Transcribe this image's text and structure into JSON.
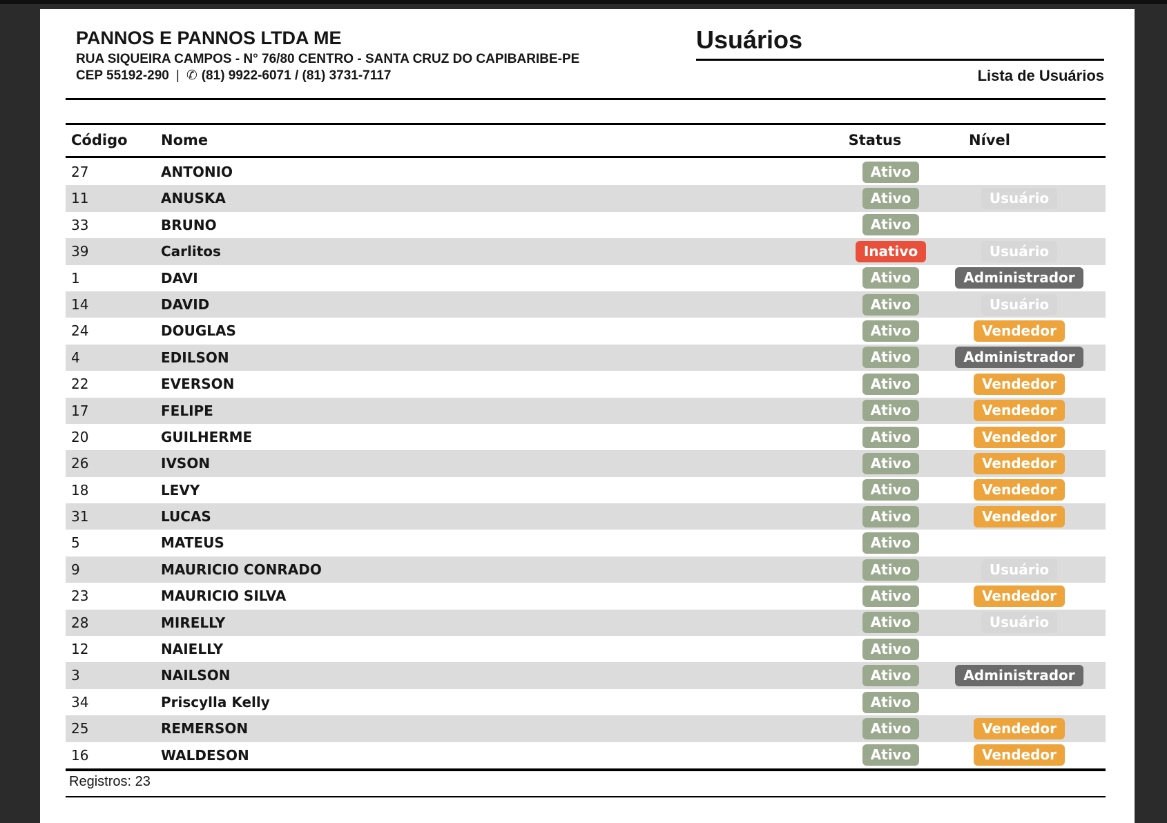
{
  "company": {
    "name": "PANNOS E PANNOS LTDA ME",
    "address": "RUA SIQUEIRA CAMPOS - N° 76/80 CENTRO - SANTA CRUZ DO CAPIBARIBE-PE",
    "cep": "CEP 55192-290",
    "separator": "|",
    "phone_icon": "✆",
    "phones": "(81) 9922-6071 / (81) 3731-7117"
  },
  "report": {
    "title": "Usuários",
    "subtitle": "Lista de Usuários"
  },
  "table": {
    "headers": {
      "codigo": "Código",
      "nome": "Nome",
      "status": "Status",
      "nivel": "Nível"
    },
    "rows": [
      {
        "codigo": "27",
        "nome": "ANTONIO",
        "status": "Ativo",
        "status_type": "ativo",
        "nivel": "",
        "nivel_type": ""
      },
      {
        "codigo": "11",
        "nome": "ANUSKA",
        "status": "Ativo",
        "status_type": "ativo",
        "nivel": "Usuário",
        "nivel_type": "usuario"
      },
      {
        "codigo": "33",
        "nome": "BRUNO",
        "status": "Ativo",
        "status_type": "ativo",
        "nivel": "",
        "nivel_type": ""
      },
      {
        "codigo": "39",
        "nome": "Carlitos",
        "status": "Inativo",
        "status_type": "inativo",
        "nivel": "Usuário",
        "nivel_type": "usuario"
      },
      {
        "codigo": "1",
        "nome": "DAVI",
        "status": "Ativo",
        "status_type": "ativo",
        "nivel": "Administrador",
        "nivel_type": "administrador"
      },
      {
        "codigo": "14",
        "nome": "DAVID",
        "status": "Ativo",
        "status_type": "ativo",
        "nivel": "Usuário",
        "nivel_type": "usuario"
      },
      {
        "codigo": "24",
        "nome": "DOUGLAS",
        "status": "Ativo",
        "status_type": "ativo",
        "nivel": "Vendedor",
        "nivel_type": "vendedor"
      },
      {
        "codigo": "4",
        "nome": "EDILSON",
        "status": "Ativo",
        "status_type": "ativo",
        "nivel": "Administrador",
        "nivel_type": "administrador"
      },
      {
        "codigo": "22",
        "nome": "EVERSON",
        "status": "Ativo",
        "status_type": "ativo",
        "nivel": "Vendedor",
        "nivel_type": "vendedor"
      },
      {
        "codigo": "17",
        "nome": "FELIPE",
        "status": "Ativo",
        "status_type": "ativo",
        "nivel": "Vendedor",
        "nivel_type": "vendedor"
      },
      {
        "codigo": "20",
        "nome": "GUILHERME",
        "status": "Ativo",
        "status_type": "ativo",
        "nivel": "Vendedor",
        "nivel_type": "vendedor"
      },
      {
        "codigo": "26",
        "nome": "IVSON",
        "status": "Ativo",
        "status_type": "ativo",
        "nivel": "Vendedor",
        "nivel_type": "vendedor"
      },
      {
        "codigo": "18",
        "nome": "LEVY",
        "status": "Ativo",
        "status_type": "ativo",
        "nivel": "Vendedor",
        "nivel_type": "vendedor"
      },
      {
        "codigo": "31",
        "nome": "LUCAS",
        "status": "Ativo",
        "status_type": "ativo",
        "nivel": "Vendedor",
        "nivel_type": "vendedor"
      },
      {
        "codigo": "5",
        "nome": "MATEUS",
        "status": "Ativo",
        "status_type": "ativo",
        "nivel": "",
        "nivel_type": ""
      },
      {
        "codigo": "9",
        "nome": "MAURICIO CONRADO",
        "status": "Ativo",
        "status_type": "ativo",
        "nivel": "Usuário",
        "nivel_type": "usuario"
      },
      {
        "codigo": "23",
        "nome": "MAURICIO SILVA",
        "status": "Ativo",
        "status_type": "ativo",
        "nivel": "Vendedor",
        "nivel_type": "vendedor"
      },
      {
        "codigo": "28",
        "nome": "MIRELLY",
        "status": "Ativo",
        "status_type": "ativo",
        "nivel": "Usuário",
        "nivel_type": "usuario"
      },
      {
        "codigo": "12",
        "nome": "NAIELLY",
        "status": "Ativo",
        "status_type": "ativo",
        "nivel": "",
        "nivel_type": ""
      },
      {
        "codigo": "3",
        "nome": "NAILSON",
        "status": "Ativo",
        "status_type": "ativo",
        "nivel": "Administrador",
        "nivel_type": "administrador"
      },
      {
        "codigo": "34",
        "nome": "Priscylla Kelly",
        "status": "Ativo",
        "status_type": "ativo",
        "nivel": "",
        "nivel_type": ""
      },
      {
        "codigo": "25",
        "nome": "REMERSON",
        "status": "Ativo",
        "status_type": "ativo",
        "nivel": "Vendedor",
        "nivel_type": "vendedor"
      },
      {
        "codigo": "16",
        "nome": "WALDESON",
        "status": "Ativo",
        "status_type": "ativo",
        "nivel": "Vendedor",
        "nivel_type": "vendedor"
      }
    ]
  },
  "footer": {
    "registros": "Registros: 23"
  },
  "badge_colors": {
    "ativo": "#9aa98e",
    "inativo": "#e8503c",
    "vendedor": "#eda43c",
    "administrador": "#6a6a6a",
    "usuario": "#d7d7d7"
  }
}
